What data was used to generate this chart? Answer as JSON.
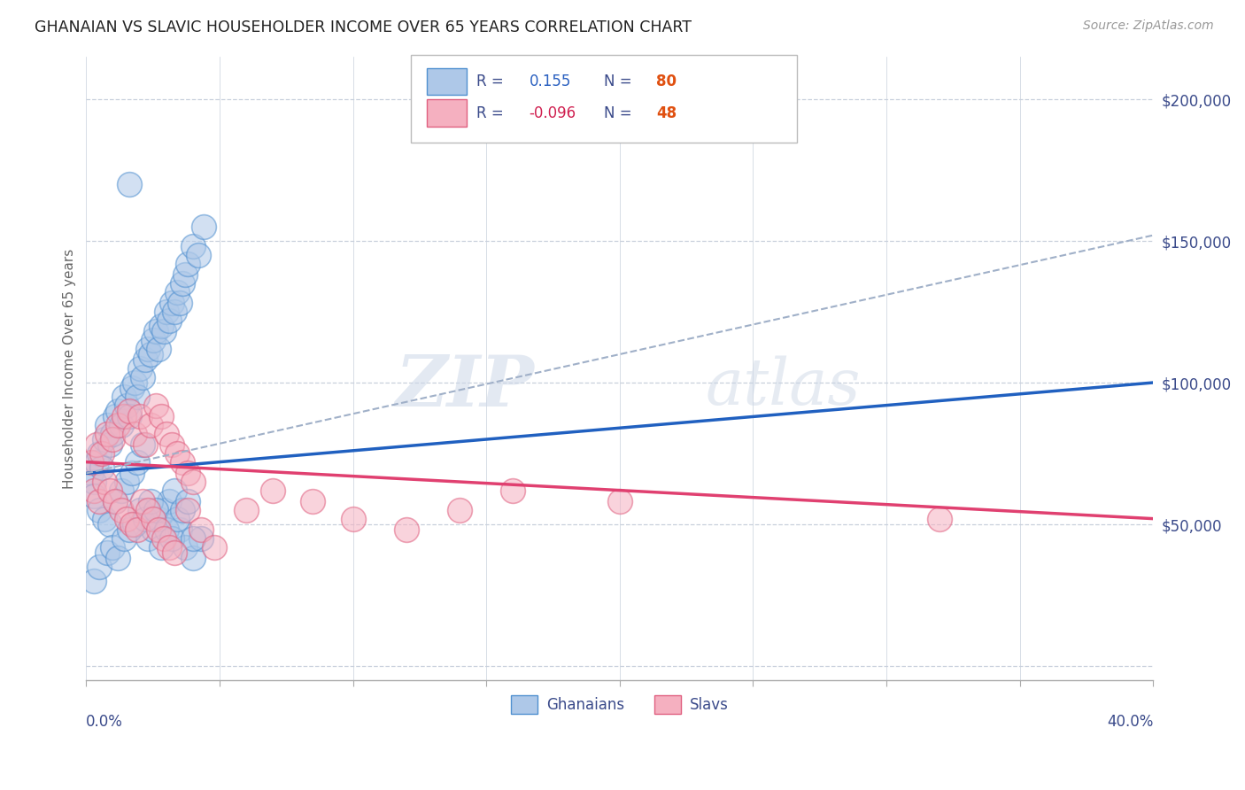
{
  "title": "GHANAIAN VS SLAVIC HOUSEHOLDER INCOME OVER 65 YEARS CORRELATION CHART",
  "source": "Source: ZipAtlas.com",
  "ylabel": "Householder Income Over 65 years",
  "xlim": [
    0.0,
    0.4
  ],
  "ylim": [
    -5000,
    215000
  ],
  "yticks": [
    0,
    50000,
    100000,
    150000,
    200000
  ],
  "xticks": [
    0.0,
    0.05,
    0.1,
    0.15,
    0.2,
    0.25,
    0.3,
    0.35,
    0.4
  ],
  "blue_color": "#aec8e8",
  "blue_edge": "#5090d0",
  "pink_color": "#f5b0c0",
  "pink_edge": "#e06080",
  "blue_line_color": "#2060c0",
  "pink_line_color": "#e04070",
  "dash_line_color": "#a0b0c8",
  "text_color": "#3a4a8a",
  "background": "#ffffff",
  "grid_color": "#c8d0dc",
  "trendline_blue": [
    0.0,
    0.4,
    68000,
    100000
  ],
  "trendline_pink": [
    0.0,
    0.4,
    72000,
    52000
  ],
  "dash_line": [
    0.0,
    0.4,
    68000,
    152000
  ],
  "ghanaian_x": [
    0.002,
    0.003,
    0.004,
    0.005,
    0.006,
    0.007,
    0.008,
    0.009,
    0.01,
    0.011,
    0.012,
    0.013,
    0.014,
    0.015,
    0.016,
    0.017,
    0.018,
    0.019,
    0.02,
    0.021,
    0.022,
    0.023,
    0.024,
    0.025,
    0.026,
    0.027,
    0.028,
    0.029,
    0.03,
    0.031,
    0.032,
    0.033,
    0.034,
    0.035,
    0.036,
    0.037,
    0.038,
    0.04,
    0.042,
    0.044,
    0.003,
    0.005,
    0.007,
    0.009,
    0.011,
    0.013,
    0.015,
    0.017,
    0.019,
    0.021,
    0.023,
    0.025,
    0.027,
    0.029,
    0.031,
    0.033,
    0.035,
    0.037,
    0.04,
    0.043,
    0.003,
    0.005,
    0.008,
    0.01,
    0.012,
    0.014,
    0.016,
    0.018,
    0.02,
    0.022,
    0.024,
    0.026,
    0.028,
    0.03,
    0.032,
    0.034,
    0.036,
    0.038,
    0.04,
    0.016
  ],
  "ghanaian_y": [
    68000,
    65000,
    72000,
    75000,
    70000,
    80000,
    85000,
    78000,
    82000,
    88000,
    90000,
    85000,
    95000,
    92000,
    88000,
    98000,
    100000,
    95000,
    105000,
    102000,
    108000,
    112000,
    110000,
    115000,
    118000,
    112000,
    120000,
    118000,
    125000,
    122000,
    128000,
    125000,
    132000,
    128000,
    135000,
    138000,
    142000,
    148000,
    145000,
    155000,
    60000,
    55000,
    52000,
    50000,
    58000,
    62000,
    65000,
    68000,
    72000,
    78000,
    45000,
    48000,
    52000,
    55000,
    58000,
    62000,
    48000,
    42000,
    38000,
    45000,
    30000,
    35000,
    40000,
    42000,
    38000,
    45000,
    48000,
    50000,
    55000,
    52000,
    58000,
    55000,
    42000,
    48000,
    45000,
    52000,
    55000,
    58000,
    45000,
    170000
  ],
  "slavic_x": [
    0.002,
    0.004,
    0.006,
    0.008,
    0.01,
    0.012,
    0.014,
    0.016,
    0.018,
    0.02,
    0.022,
    0.024,
    0.026,
    0.028,
    0.03,
    0.032,
    0.034,
    0.036,
    0.038,
    0.04,
    0.003,
    0.005,
    0.007,
    0.009,
    0.011,
    0.013,
    0.015,
    0.017,
    0.019,
    0.021,
    0.023,
    0.025,
    0.027,
    0.029,
    0.031,
    0.033,
    0.038,
    0.043,
    0.048,
    0.06,
    0.07,
    0.085,
    0.1,
    0.12,
    0.14,
    0.16,
    0.2,
    0.32
  ],
  "slavic_y": [
    72000,
    78000,
    75000,
    82000,
    80000,
    85000,
    88000,
    90000,
    82000,
    88000,
    78000,
    85000,
    92000,
    88000,
    82000,
    78000,
    75000,
    72000,
    68000,
    65000,
    62000,
    58000,
    65000,
    62000,
    58000,
    55000,
    52000,
    50000,
    48000,
    58000,
    55000,
    52000,
    48000,
    45000,
    42000,
    40000,
    55000,
    48000,
    42000,
    55000,
    62000,
    58000,
    52000,
    48000,
    55000,
    62000,
    58000,
    52000
  ]
}
